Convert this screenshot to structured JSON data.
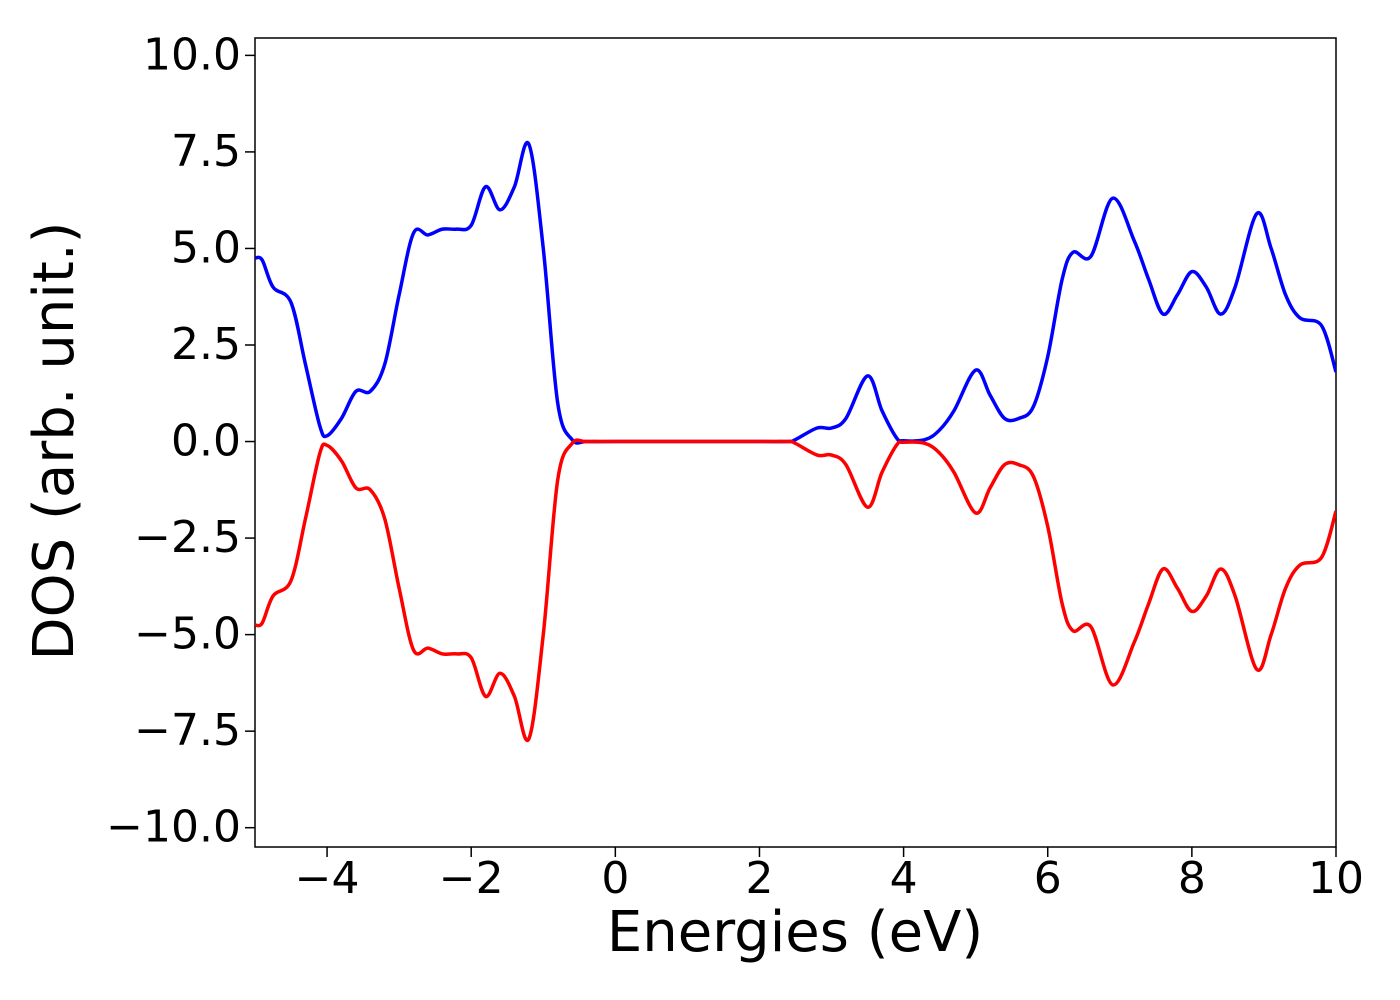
{
  "chart_data": {
    "type": "line",
    "x_label": "Energies (eV)",
    "y_label": "DOS (arb. unit.)",
    "x": [
      -5,
      -4.9,
      -4.75,
      -4.5,
      -4.3,
      -4.1,
      -4,
      -3.8,
      -3.6,
      -3.4,
      -3.2,
      -3,
      -2.8,
      -2.6,
      -2.4,
      -2.2,
      -2,
      -1.8,
      -1.6,
      -1.4,
      -1.2,
      -1,
      -0.8,
      -0.6,
      -0.4,
      0,
      1,
      2,
      2.4,
      2.5,
      2.8,
      3,
      3.2,
      3.5,
      3.7,
      3.9,
      4,
      4.3,
      4.5,
      4.7,
      5,
      5.2,
      5.4,
      5.6,
      5.8,
      6,
      6.2,
      6.35,
      6.6,
      6.9,
      7.2,
      7.4,
      7.6,
      7.8,
      8,
      8.2,
      8.4,
      8.6,
      8.9,
      9.1,
      9.3,
      9.5,
      9.8,
      10
    ],
    "series": [
      {
        "color": "#0000ff",
        "values": [
          4.75,
          4.7,
          4.0,
          3.6,
          2.0,
          0.4,
          0.15,
          0.6,
          1.3,
          1.3,
          2.0,
          3.8,
          5.4,
          5.35,
          5.5,
          5.5,
          5.6,
          6.6,
          6.0,
          6.6,
          7.7,
          5.0,
          1.0,
          0.05,
          0,
          0,
          0,
          0,
          0,
          0.05,
          0.35,
          0.35,
          0.6,
          1.7,
          0.8,
          0.1,
          0.02,
          0.05,
          0.3,
          0.8,
          1.85,
          1.2,
          0.6,
          0.6,
          0.9,
          2.2,
          4.2,
          4.9,
          4.8,
          6.3,
          5.2,
          4.2,
          3.3,
          3.8,
          4.4,
          4.0,
          3.3,
          4.0,
          5.9,
          5.0,
          3.8,
          3.2,
          3.0,
          1.8
        ]
      },
      {
        "color": "#ff0000",
        "values": [
          -4.75,
          -4.7,
          -4.0,
          -3.6,
          -2.0,
          -0.3,
          -0.1,
          -0.5,
          -1.2,
          -1.25,
          -2.0,
          -3.8,
          -5.4,
          -5.35,
          -5.5,
          -5.5,
          -5.6,
          -6.6,
          -6.0,
          -6.6,
          -7.7,
          -5.0,
          -1.0,
          -0.05,
          0,
          0,
          0,
          0,
          0,
          -0.05,
          -0.35,
          -0.35,
          -0.6,
          -1.7,
          -0.8,
          -0.1,
          -0.02,
          -0.05,
          -0.3,
          -0.8,
          -1.85,
          -1.2,
          -0.6,
          -0.6,
          -0.9,
          -2.2,
          -4.2,
          -4.9,
          -4.8,
          -6.3,
          -5.2,
          -4.2,
          -3.3,
          -3.8,
          -4.4,
          -4.0,
          -3.3,
          -4.0,
          -5.9,
          -5.0,
          -3.8,
          -3.2,
          -3.0,
          -1.8
        ]
      }
    ],
    "xlim": [
      -5,
      10
    ],
    "xticks": [
      {
        "value": -4,
        "label": "−4"
      },
      {
        "value": -2,
        "label": "−2"
      },
      0,
      2,
      4,
      6,
      8,
      10
    ],
    "ylim": [
      -10.5,
      10.45
    ],
    "yticks": [
      {
        "value": -10,
        "label": "−10.0"
      },
      {
        "value": -7.5,
        "label": "−7.5"
      },
      {
        "value": -5,
        "label": "−5.0"
      },
      {
        "value": -2.5,
        "label": "−2.5"
      },
      {
        "value": 0,
        "label": "0.0"
      },
      {
        "value": 2.5,
        "label": "2.5"
      },
      {
        "value": 5,
        "label": "5.0"
      },
      {
        "value": 7.5,
        "label": "7.5"
      },
      {
        "value": 10,
        "label": "10.0"
      }
    ],
    "grid": false
  }
}
